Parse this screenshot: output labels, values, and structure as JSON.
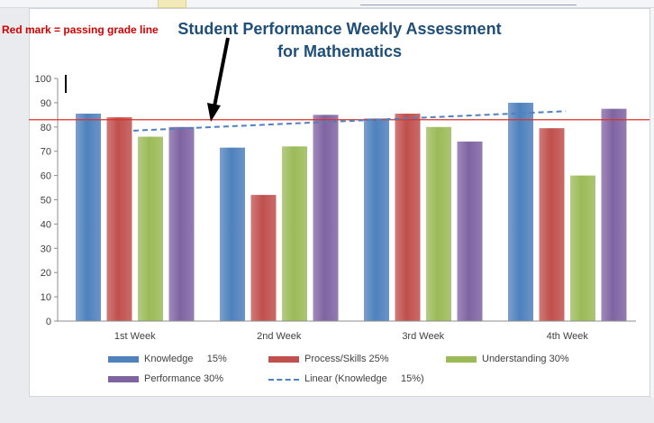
{
  "annotation": "Red mark = passing grade line",
  "chart_data": {
    "type": "bar",
    "title_lines": [
      "Student Performance Weekly Assessment",
      "for Mathematics"
    ],
    "categories": [
      "1st Week",
      "2nd Week",
      "3rd Week",
      "4th Week"
    ],
    "series": [
      {
        "name": "Knowledge     15%",
        "color": "#4f81bd",
        "values": [
          85.5,
          71.5,
          83.5,
          90
        ]
      },
      {
        "name": "Process/Skills 25%",
        "color": "#c0504d",
        "values": [
          84,
          52,
          85.5,
          79.5
        ]
      },
      {
        "name": "Understanding 30%",
        "color": "#9bbb59",
        "values": [
          76,
          72,
          80,
          60
        ]
      },
      {
        "name": "Performance 30%",
        "color": "#8064a2",
        "values": [
          80,
          85,
          74,
          87.5
        ]
      }
    ],
    "trendline": {
      "name": "Linear (Knowledge     15%)",
      "of_series": "Knowledge     15%",
      "style": "dashed",
      "color": "#4f81bd",
      "start": 78.5,
      "end": 86.5
    },
    "passing_line": {
      "value": 83,
      "color": "#e0312a"
    },
    "yticks": [
      0,
      10,
      20,
      30,
      40,
      50,
      60,
      70,
      80,
      90,
      100
    ],
    "ylim": [
      0,
      100
    ],
    "legend_position": "bottom",
    "grid": false
  }
}
